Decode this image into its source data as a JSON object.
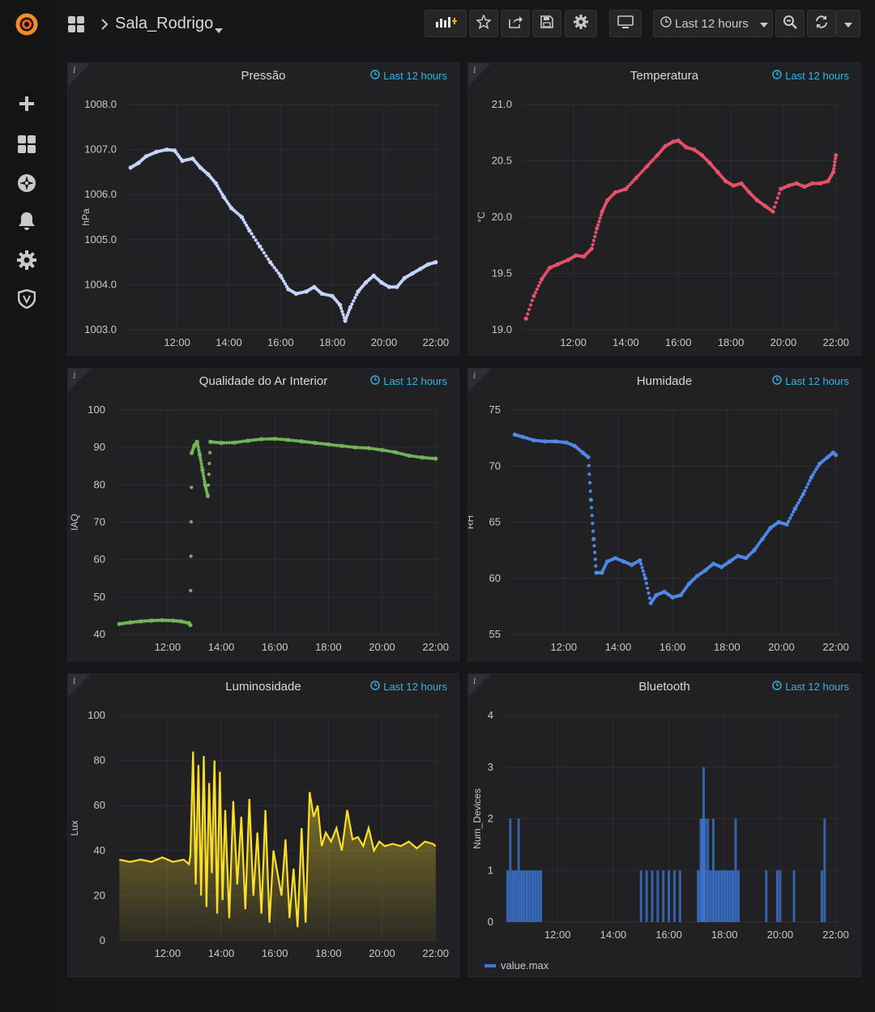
{
  "dashboard": {
    "title": "Sala_Rodrigo",
    "time_picker_label": "Last 12 hours"
  },
  "sidebar": {
    "items": [
      {
        "icon": "grafana-logo-icon"
      },
      {
        "icon": "plus-icon"
      },
      {
        "icon": "dashboards-icon"
      },
      {
        "icon": "explore-compass-icon"
      },
      {
        "icon": "alerting-bell-icon"
      },
      {
        "icon": "configuration-gear-icon"
      },
      {
        "icon": "shield-icon"
      }
    ]
  },
  "toolbar": {
    "icons": [
      "add-panel-icon",
      "star-icon",
      "share-icon",
      "save-icon",
      "settings-icon",
      "tv-mode-icon",
      "zoom-out-icon",
      "refresh-icon",
      "refresh-interval-caret-icon"
    ]
  },
  "colors": {
    "pressure": "#c4d4ff",
    "temperature": "#e8506a",
    "iaq": "#73b556",
    "humidity": "#4f89e8",
    "lux": "#fade2a",
    "bluetooth": "#3b78d8",
    "accent": "#33b5e5"
  },
  "panels": [
    {
      "id": "pressao",
      "title": "Pressão",
      "time_label": "Last 12 hours"
    },
    {
      "id": "temperatura",
      "title": "Temperatura",
      "time_label": "Last 12 hours"
    },
    {
      "id": "iaq",
      "title": "Qualidade do Ar Interior",
      "time_label": "Last 12 hours"
    },
    {
      "id": "humidade",
      "title": "Humidade",
      "time_label": "Last 12 hours"
    },
    {
      "id": "luminosidade",
      "title": "Luminosidade",
      "time_label": "Last 12 hours"
    },
    {
      "id": "bluetooth",
      "title": "Bluetooth",
      "time_label": "Last 12 hours",
      "legend": "value.max"
    }
  ],
  "chart_data": [
    {
      "id": "pressao",
      "type": "scatter",
      "title": "Pressão",
      "ylabel": "hPa",
      "xlim": [
        10.1,
        22.1
      ],
      "ylim": [
        1003.0,
        1008.0
      ],
      "yticks": [
        "1003.0",
        "1004.0",
        "1005.0",
        "1006.0",
        "1007.0",
        "1008.0"
      ],
      "xticks": [
        "12:00",
        "14:00",
        "16:00",
        "18:00",
        "20:00",
        "22:00"
      ],
      "series": [
        {
          "x": [
            10.2,
            10.5,
            10.8,
            11.2,
            11.6,
            11.9,
            12.2,
            12.6,
            12.9,
            13.2,
            13.5,
            13.8,
            14.1,
            14.5,
            14.8,
            15.2,
            15.6,
            16.0,
            16.3,
            16.6,
            17.0,
            17.3,
            17.6,
            18.0,
            18.3,
            18.5,
            18.7,
            19.0,
            19.3,
            19.6,
            19.9,
            20.2,
            20.5,
            20.8,
            21.1,
            21.4,
            21.7,
            22.0
          ],
          "y": [
            1006.6,
            1006.7,
            1006.85,
            1006.95,
            1007.0,
            1006.98,
            1006.75,
            1006.8,
            1006.6,
            1006.45,
            1006.25,
            1005.95,
            1005.7,
            1005.5,
            1005.2,
            1004.85,
            1004.5,
            1004.2,
            1003.9,
            1003.8,
            1003.85,
            1003.95,
            1003.8,
            1003.75,
            1003.55,
            1003.2,
            1003.5,
            1003.85,
            1004.05,
            1004.2,
            1004.05,
            1003.95,
            1003.95,
            1004.15,
            1004.25,
            1004.35,
            1004.45,
            1004.5
          ]
        }
      ]
    },
    {
      "id": "temperatura",
      "type": "scatter",
      "title": "Temperatura",
      "ylabel": "°C",
      "xlim": [
        10.1,
        22.1
      ],
      "ylim": [
        19.0,
        21.0
      ],
      "yticks": [
        "19.0",
        "19.5",
        "20.0",
        "20.5",
        "21.0"
      ],
      "xticks": [
        "12:00",
        "14:00",
        "16:00",
        "18:00",
        "20:00",
        "22:00"
      ],
      "series": [
        {
          "x": [
            10.2,
            10.5,
            10.8,
            11.1,
            11.4,
            11.8,
            12.1,
            12.4,
            12.7,
            12.9,
            13.1,
            13.3,
            13.6,
            14.0,
            14.4,
            14.8,
            15.2,
            15.5,
            15.8,
            16.0,
            16.3,
            16.6,
            16.9,
            17.2,
            17.5,
            17.8,
            18.1,
            18.4,
            18.7,
            19.0,
            19.3,
            19.6,
            19.9,
            20.2,
            20.5,
            20.8,
            21.1,
            21.4,
            21.7,
            21.9,
            22.0
          ],
          "y": [
            19.1,
            19.3,
            19.45,
            19.55,
            19.58,
            19.62,
            19.66,
            19.65,
            19.72,
            19.9,
            20.05,
            20.15,
            20.22,
            20.25,
            20.35,
            20.45,
            20.55,
            20.63,
            20.67,
            20.68,
            20.62,
            20.6,
            20.55,
            20.48,
            20.4,
            20.32,
            20.28,
            20.3,
            20.22,
            20.15,
            20.1,
            20.05,
            20.25,
            20.28,
            20.3,
            20.27,
            20.3,
            20.3,
            20.32,
            20.4,
            20.55
          ]
        }
      ]
    },
    {
      "id": "iaq",
      "type": "scatter",
      "title": "Qualidade do Ar Interior",
      "ylabel": "IAQ",
      "xlim": [
        10.1,
        22.1
      ],
      "ylim": [
        40,
        100
      ],
      "yticks": [
        "40",
        "50",
        "60",
        "70",
        "80",
        "90",
        "100"
      ],
      "xticks": [
        "12:00",
        "14:00",
        "16:00",
        "18:00",
        "20:00",
        "22:00"
      ],
      "series": [
        {
          "x": [
            10.2,
            10.6,
            11.0,
            11.4,
            11.8,
            12.2,
            12.5,
            12.8,
            12.85,
            12.9,
            13.0,
            13.1,
            13.2,
            13.3,
            13.4,
            13.5,
            13.6,
            14.0,
            14.5,
            15.0,
            15.5,
            16.0,
            16.5,
            17.0,
            17.5,
            18.0,
            18.5,
            19.0,
            19.5,
            20.0,
            20.5,
            21.0,
            21.5,
            22.0
          ],
          "y": [
            42.8,
            43.2,
            43.5,
            43.7,
            43.8,
            43.7,
            43.5,
            43.0,
            42.5,
            88.5,
            90.5,
            91.5,
            88.0,
            84.0,
            80.0,
            77.0,
            91.5,
            91.2,
            91.3,
            91.8,
            92.2,
            92.3,
            92.0,
            91.6,
            91.2,
            90.8,
            90.4,
            90.0,
            89.8,
            89.3,
            88.7,
            87.8,
            87.3,
            87.0
          ]
        }
      ]
    },
    {
      "id": "humidade",
      "type": "scatter",
      "title": "Humidade",
      "ylabel": "RH",
      "xlim": [
        10.1,
        22.1
      ],
      "ylim": [
        55,
        75
      ],
      "yticks": [
        "55",
        "60",
        "65",
        "70",
        "75"
      ],
      "xticks": [
        "12:00",
        "14:00",
        "16:00",
        "18:00",
        "20:00",
        "22:00"
      ],
      "series": [
        {
          "x": [
            10.2,
            10.5,
            10.9,
            11.3,
            11.7,
            12.1,
            12.4,
            12.7,
            12.9,
            13.0,
            13.1,
            13.2,
            13.4,
            13.6,
            13.9,
            14.2,
            14.5,
            14.8,
            15.0,
            15.2,
            15.4,
            15.7,
            16.0,
            16.3,
            16.6,
            16.9,
            17.2,
            17.5,
            17.8,
            18.1,
            18.4,
            18.7,
            19.0,
            19.3,
            19.6,
            19.9,
            20.2,
            20.5,
            20.8,
            21.1,
            21.4,
            21.7,
            21.9,
            22.0
          ],
          "y": [
            72.8,
            72.6,
            72.3,
            72.2,
            72.2,
            72.1,
            71.8,
            71.2,
            70.8,
            67.0,
            63.5,
            60.5,
            60.5,
            61.5,
            61.8,
            61.5,
            61.2,
            61.6,
            60.0,
            57.8,
            58.5,
            58.8,
            58.3,
            58.5,
            59.5,
            60.2,
            60.7,
            61.3,
            61.0,
            61.5,
            62.0,
            61.8,
            62.5,
            63.5,
            64.5,
            65.0,
            64.8,
            66.2,
            67.5,
            69.0,
            70.2,
            70.8,
            71.2,
            71.0
          ]
        }
      ]
    },
    {
      "id": "luminosidade",
      "type": "area",
      "title": "Luminosidade",
      "ylabel": "Lux",
      "xlim": [
        10.1,
        22.1
      ],
      "ylim": [
        0,
        100
      ],
      "yticks": [
        "0",
        "20",
        "40",
        "60",
        "80",
        "100"
      ],
      "xticks": [
        "12:00",
        "14:00",
        "16:00",
        "18:00",
        "20:00",
        "22:00"
      ],
      "series": [
        {
          "x": [
            10.2,
            10.6,
            11.0,
            11.4,
            11.8,
            12.2,
            12.6,
            12.8,
            12.85,
            12.95,
            13.05,
            13.15,
            13.25,
            13.35,
            13.45,
            13.55,
            13.65,
            13.75,
            13.85,
            13.95,
            14.05,
            14.15,
            14.3,
            14.45,
            14.6,
            14.75,
            14.9,
            15.05,
            15.2,
            15.35,
            15.5,
            15.65,
            15.8,
            15.95,
            16.1,
            16.25,
            16.4,
            16.55,
            16.7,
            16.85,
            17.0,
            17.15,
            17.3,
            17.45,
            17.6,
            17.75,
            17.9,
            18.1,
            18.3,
            18.5,
            18.7,
            18.9,
            19.1,
            19.3,
            19.5,
            19.7,
            19.9,
            20.1,
            20.4,
            20.7,
            21.0,
            21.3,
            21.6,
            21.9,
            22.0
          ],
          "y": [
            36,
            35,
            36,
            35,
            37,
            35,
            36,
            34,
            38,
            84,
            25,
            78,
            20,
            82,
            15,
            70,
            30,
            80,
            12,
            75,
            18,
            58,
            10,
            62,
            25,
            55,
            14,
            63,
            20,
            48,
            12,
            58,
            8,
            40,
            30,
            20,
            45,
            10,
            32,
            6,
            50,
            8,
            66,
            55,
            60,
            42,
            48,
            44,
            50,
            40,
            58,
            45,
            46,
            42,
            50,
            40,
            44,
            42,
            43,
            42,
            44,
            41,
            44,
            43,
            42
          ]
        }
      ]
    },
    {
      "id": "bluetooth",
      "type": "bar",
      "title": "Bluetooth",
      "ylabel": "Num_Devices",
      "xlim": [
        10.1,
        22.1
      ],
      "ylim": [
        0,
        4
      ],
      "yticks": [
        "0",
        "1",
        "2",
        "3",
        "4"
      ],
      "xticks": [
        "12:00",
        "14:00",
        "16:00",
        "18:00",
        "20:00",
        "22:00"
      ],
      "series": [
        {
          "name": "value.max",
          "x": [
            10.2,
            10.3,
            10.4,
            10.5,
            10.6,
            10.7,
            10.8,
            10.9,
            11.0,
            11.1,
            11.2,
            11.3,
            11.4,
            15.0,
            15.2,
            15.4,
            15.6,
            15.8,
            16.0,
            16.2,
            16.4,
            17.05,
            17.15,
            17.2,
            17.25,
            17.3,
            17.4,
            17.5,
            17.6,
            17.7,
            17.8,
            17.9,
            18.0,
            18.1,
            18.2,
            18.3,
            18.4,
            18.5,
            19.5,
            19.9,
            20.0,
            20.5,
            21.5,
            21.6
          ],
          "y": [
            1,
            2,
            1,
            1,
            2,
            1,
            1,
            1,
            1,
            1,
            1,
            1,
            1,
            1,
            1,
            1,
            1,
            1,
            1,
            1,
            1,
            1,
            2,
            2,
            3,
            2,
            2,
            1,
            2,
            1,
            1,
            1,
            1,
            1,
            1,
            1,
            2,
            1,
            1,
            1,
            1,
            1,
            1,
            2
          ]
        }
      ]
    }
  ]
}
